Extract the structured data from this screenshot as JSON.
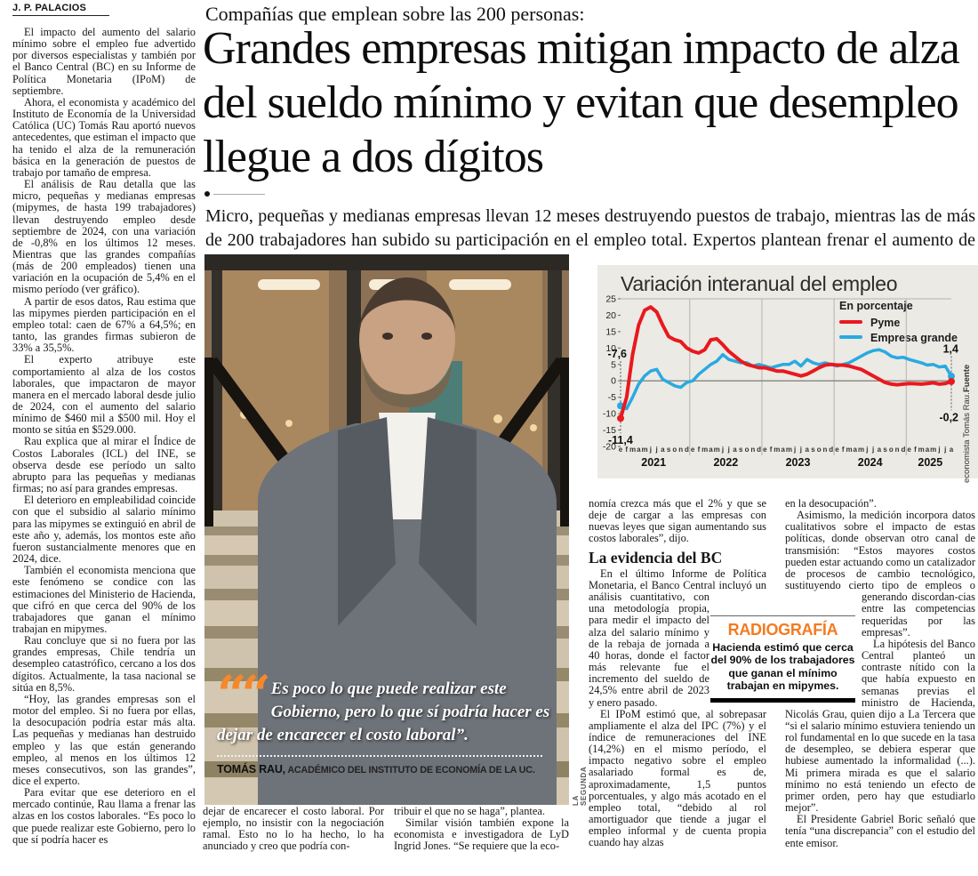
{
  "byline": "J. P. PALACIOS",
  "kicker": "Compañías que emplean sobre las 200 personas:",
  "headline": "Grandes empresas mitigan impacto de alza del sueldo mínimo y evitan que desempleo llegue a dos dígitos",
  "deck": "Micro, pequeñas y medianas empresas llevan 12 meses destruyendo puestos de trabajo, mientras las de más de 200 trabajadores han subido su participación en el empleo total. Expertos plantean frenar el aumento de costos.",
  "left_column": {
    "paragraphs": [
      "El impacto del aumento del salario mínimo sobre el empleo fue advertido por diversos especialistas y también por el Banco Central (BC) en su Informe de Política Monetaria (IPoM) de septiembre.",
      "Ahora, el economista y académico del Instituto de Economía de la Universidad Católica (UC) Tomás Rau aportó nuevos antecedentes, que estiman el impacto que ha tenido el alza de la remuneración básica en la generación de puestos de trabajo por tamaño de empresa.",
      "El análisis de Rau detalla que las micro, pequeñas y medianas empresas (mipymes, de hasta 199 trabajadores) llevan destruyendo empleo desde septiembre de 2024, con una variación de -0,8% en los últimos 12 meses. Mientras que las grandes compañías (más de 200 empleados) tienen una variación en la ocupación de 5,4% en el mismo período (ver gráfico).",
      "A partir de esos datos, Rau estima que las mipymes pierden participación en el empleo total: caen de 67% a 64,5%; en tanto, las grandes firmas subieron de 33% a 35,5%.",
      "El experto atribuye este comportamiento al alza de los costos laborales, que impactaron de mayor manera en el mercado laboral desde julio de 2024, con el aumento del salario mínimo de $460 mil a $500 mil. Hoy el monto se sitúa en $529.000.",
      "Rau explica que al mirar el Índice de Costos Laborales (ICL) del INE, se observa desde ese período un salto abrupto para las pequeñas y medianas firmas; no así para grandes empresas.",
      "El deterioro en empleabilidad coincide con que el subsidio al salario mínimo para las mipymes se extinguió en abril de este año y, además, los montos este año fueron sustancialmente menores que en 2024, dice.",
      "También el economista menciona que este fenómeno se condice con las estimaciones del Ministerio de Hacienda, que cifró en que cerca del 90% de los trabajadores que ganan el mínimo trabajan en mipymes.",
      "Rau concluye que si no fuera por las grandes empresas, Chile tendría un desempleo catastrófico, cercano a los dos dígitos. Actualmente, la tasa nacional se sitúa en 8,5%.",
      "“Hoy, las grandes empresas son el motor del empleo. Si no fuera por ellas, la desocupación podría estar más alta. Las pequeñas y medianas han destruido empleo y las que están generando empleo, al menos en los últimos 12 meses consecutivos, son las grandes”, dice el experto.",
      "Para evitar que ese deterioro en el mercado continúe, Rau llama a frenar las alzas en los costos laborales. “Es poco lo que puede realizar este Gobierno, pero lo que sí podría hacer es"
    ]
  },
  "photo": {
    "credit": "LA SEGUNDA",
    "quote_mark": "“",
    "quote": "Es poco lo que puede realizar este Gobierno, pero lo que sí podría hacer es dejar de encarecer el costo laboral”.",
    "attribution_name": "TOMÁS RAU,",
    "attribution_role": " ACADÉMICO DEL INSTITUTO DE ECONOMÍA DE LA UC."
  },
  "mid_column": {
    "p1": "nomía crezca más que el 2% y que se deje de cargar a las empresas con nuevas leyes que sigan aumentando sus costos laborales”, dijo.",
    "heading": "La evidencia del BC",
    "p2a": "En el último Informe de Política Monetaria, el Banco Central incluyó ",
    "p2b": "un análisis cuantitativo, con una metodología propia, para medir el impacto del alza del salario mínimo y de la rebaja de jornada a 40 horas, donde el factor más relevante fue el incremento del sueldo de 24,5% entre abril de 2023 y enero pasado.",
    "p3": "El IPoM estimó que, al sobrepasar ampliamente el alza del IPC (7%) y el índice de remuneraciones del INE (14,2%) en el mismo período, el impacto negativo sobre el empleo asalariado formal es de, aproximadamente, 1,5 puntos porcentuales, y algo más acotado en el empleo total, “debido al rol amortiguador que tiende a jugar el empleo informal y de cuenta propia cuando hay alzas"
  },
  "right_column": {
    "p1": "en la desocupación”.",
    "p2a": "Asimismo, la medición incorpora datos cualitativos sobre el impacto de estas políticas, donde observan otro canal de transmisión: “Estos mayores costos pueden estar actuando como un catalizador de procesos de cambio tecnológico, sustituyendo cierto tipo de empleos o generando discordan-",
    "p2b": "cias entre las competencias requeridas por las empresas”.",
    "p3": "La hipótesis del Banco Central planteó un contraste nítido con la que había expuesto en semanas previas el ministro de Hacienda, Nicolás Grau, quien dijo a La Tercera que “si el salario mínimo estuviera teniendo un rol fundamental en lo que sucede en la tasa de desempleo, se debiera esperar que hubiese aumentado la informalidad (...). Mi primera mirada es que el salario mínimo no está teniendo un efecto de primer orden, pero hay que estudiarlo mejor”.",
    "p4": "El Presidente Gabriel Boric señaló que tenía “una discrepancia” con el estudio del ente emisor."
  },
  "radiografia": {
    "title": "RADIOGRAFÍA",
    "text": "Hacienda estimó que cerca del 90% de los trabajadores que ganan el mínimo trabajan en mipymes.",
    "accent_color": "#f47b20"
  },
  "bottom_columns": {
    "col1": "dejar de encarecer el costo laboral. Por ejemplo, no insistir con la negociación ramal. Esto no lo ha hecho, lo ha anunciado y creo que podría con-",
    "col2_p1": "tribuir el que no se haga”, plantea.",
    "col2_p2": "Similar visión también expone la economista e investigadora de LyD Ingrid Jones. “Se requiere que la eco-"
  },
  "chart_data": {
    "type": "line",
    "title": "Variación interanual del empleo",
    "subtitle": "En porcentaje",
    "source_label": "Fuente",
    "source_text": "economista Tomás Rau.",
    "background": "#eceae4",
    "ylim": [
      -20,
      25
    ],
    "yticks": [
      25,
      20,
      15,
      10,
      5,
      0,
      -5,
      -10,
      -15,
      -20
    ],
    "x_years": [
      {
        "label": "2021",
        "months": [
          "e",
          "f",
          "m",
          "a",
          "m",
          "j",
          "j",
          "a",
          "s",
          "o",
          "n",
          "d"
        ]
      },
      {
        "label": "2022",
        "months": [
          "e",
          "f",
          "m",
          "a",
          "m",
          "j",
          "j",
          "a",
          "s",
          "o",
          "n",
          "d"
        ]
      },
      {
        "label": "2023",
        "months": [
          "e",
          "f",
          "m",
          "a",
          "m",
          "j",
          "j",
          "a",
          "s",
          "o",
          "n",
          "d"
        ]
      },
      {
        "label": "2024",
        "months": [
          "e",
          "f",
          "m",
          "a",
          "m",
          "j",
          "j",
          "a",
          "s",
          "o",
          "n",
          "d"
        ]
      },
      {
        "label": "2025",
        "months": [
          "e",
          "f",
          "m",
          "a",
          "m",
          "j",
          "j",
          "a"
        ]
      }
    ],
    "series": [
      {
        "name": "Pyme",
        "color": "#e8191f",
        "width": 4,
        "start_label": "-11,4",
        "end_label": "-0,2",
        "values": [
          -11.4,
          -5,
          8,
          17,
          21.5,
          22.5,
          21,
          17,
          13.5,
          12.5,
          12,
          10,
          9,
          8.5,
          9.5,
          12.5,
          12.8,
          11,
          9,
          7.5,
          6,
          5,
          4.5,
          4,
          4,
          3.5,
          3,
          3,
          2.5,
          2,
          1.5,
          2,
          3,
          4,
          4.8,
          5,
          4.8,
          4.8,
          4.5,
          4,
          3.5,
          2.5,
          1.5,
          0.5,
          -0.5,
          -1,
          -1.2,
          -1,
          -0.8,
          -0.9,
          -1,
          -0.8,
          -0.6,
          -1,
          -0.8,
          -0.2
        ]
      },
      {
        "name": "Empresa grande",
        "color": "#29aae1",
        "width": 3.5,
        "start_label": "-7,6",
        "end_label": "1,4",
        "values": [
          -7.6,
          -8.5,
          -5,
          -1,
          1.5,
          3,
          3.5,
          0.5,
          -0.5,
          -1.5,
          -2,
          -0.5,
          0,
          2,
          3.5,
          5,
          6,
          8,
          6.5,
          6,
          5.5,
          5.5,
          4.5,
          5,
          4.5,
          4,
          4.5,
          5,
          5,
          6,
          4.5,
          6.5,
          5.5,
          5,
          5.5,
          5,
          4.5,
          5,
          5.5,
          6.5,
          7.5,
          8.5,
          9.2,
          9.5,
          8.8,
          7.5,
          7,
          7.2,
          6.5,
          6,
          5.5,
          4.8,
          5,
          4.2,
          4.5,
          1.4
        ]
      }
    ]
  }
}
